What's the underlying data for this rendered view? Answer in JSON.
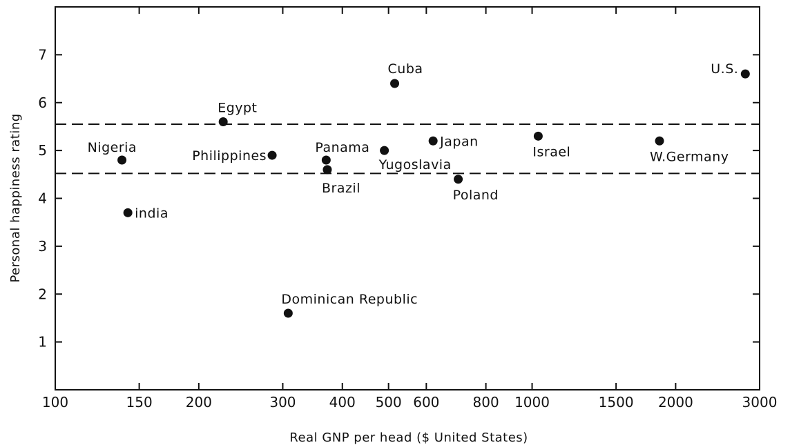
{
  "chart_data": {
    "type": "scatter",
    "x_scale": "log",
    "xlabel": "Real GNP per head ($ United States)",
    "ylabel": "Personal happiness rating",
    "xlim": [
      100,
      3000
    ],
    "ylim": [
      0,
      8
    ],
    "x_ticks": [
      100,
      150,
      200,
      300,
      400,
      500,
      600,
      800,
      1000,
      1500,
      2000,
      3000
    ],
    "x_tick_labels": [
      "100",
      "150",
      "200",
      "300",
      "400",
      "500",
      "600",
      "800",
      "1000",
      "1500",
      "2000",
      "3000"
    ],
    "y_ticks": [
      1,
      2,
      3,
      4,
      5,
      6,
      7
    ],
    "y_tick_labels": [
      "1",
      "2",
      "3",
      "4",
      "5",
      "6",
      "7"
    ],
    "reference_lines": [
      4.52,
      5.55
    ],
    "grid": false,
    "points": [
      {
        "label": "Nigeria",
        "x": 138,
        "y": 4.8
      },
      {
        "label": "india",
        "x": 142,
        "y": 3.7
      },
      {
        "label": "Egypt",
        "x": 225,
        "y": 5.6
      },
      {
        "label": "Philippines",
        "x": 285,
        "y": 4.9
      },
      {
        "label": "Dominican Republic",
        "x": 308,
        "y": 1.6
      },
      {
        "label": "Panama",
        "x": 370,
        "y": 4.8
      },
      {
        "label": "Brazil",
        "x": 372,
        "y": 4.6
      },
      {
        "label": "Yugoslavia",
        "x": 490,
        "y": 5.0
      },
      {
        "label": "Cuba",
        "x": 515,
        "y": 6.4
      },
      {
        "label": "Japan",
        "x": 620,
        "y": 5.2
      },
      {
        "label": "Poland",
        "x": 700,
        "y": 4.4
      },
      {
        "label": "Israel",
        "x": 1030,
        "y": 5.3
      },
      {
        "label": "W.Germany",
        "x": 1850,
        "y": 5.2
      },
      {
        "label": "U.S.",
        "x": 2800,
        "y": 6.6
      }
    ]
  }
}
